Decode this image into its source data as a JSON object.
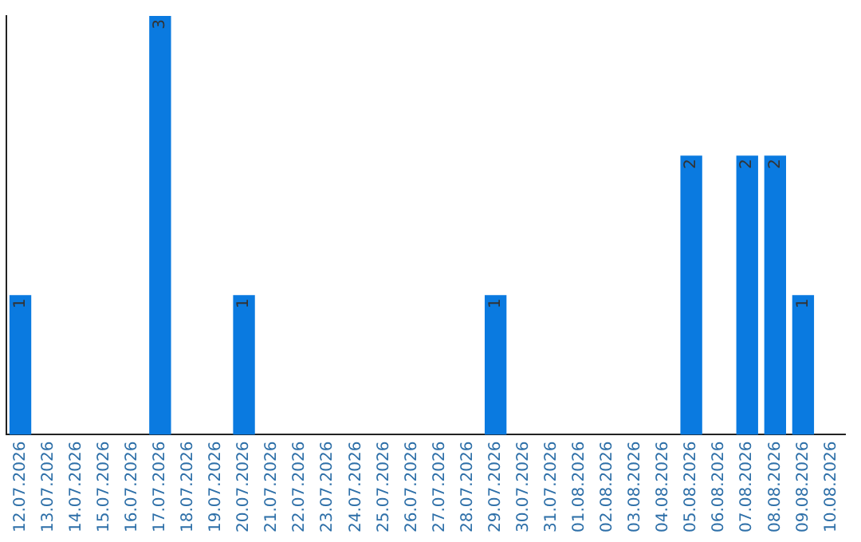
{
  "chart_data": {
    "type": "bar",
    "categories": [
      "12.07.2026",
      "13.07.2026",
      "14.07.2026",
      "15.07.2026",
      "16.07.2026",
      "17.07.2026",
      "18.07.2026",
      "19.07.2026",
      "20.07.2026",
      "21.07.2026",
      "22.07.2026",
      "23.07.2026",
      "24.07.2026",
      "25.07.2026",
      "26.07.2026",
      "27.07.2026",
      "28.07.2026",
      "29.07.2026",
      "30.07.2026",
      "31.07.2026",
      "01.08.2026",
      "02.08.2026",
      "03.08.2026",
      "04.08.2026",
      "05.08.2026",
      "06.08.2026",
      "07.08.2026",
      "08.08.2026",
      "09.08.2026",
      "10.08.2026"
    ],
    "values": [
      1,
      0,
      0,
      0,
      0,
      3,
      0,
      0,
      1,
      0,
      0,
      0,
      0,
      0,
      0,
      0,
      0,
      1,
      0,
      0,
      0,
      0,
      0,
      0,
      2,
      0,
      2,
      2,
      1,
      0
    ],
    "value_labels": [
      "1",
      null,
      null,
      null,
      null,
      "3",
      null,
      null,
      "1",
      null,
      null,
      null,
      null,
      null,
      null,
      null,
      null,
      "1",
      null,
      null,
      null,
      null,
      null,
      null,
      "2",
      null,
      "2",
      "2",
      "1",
      null
    ],
    "color": "#0a7ae0",
    "tick_labels": "x",
    "grid": false,
    "legend": false
  }
}
